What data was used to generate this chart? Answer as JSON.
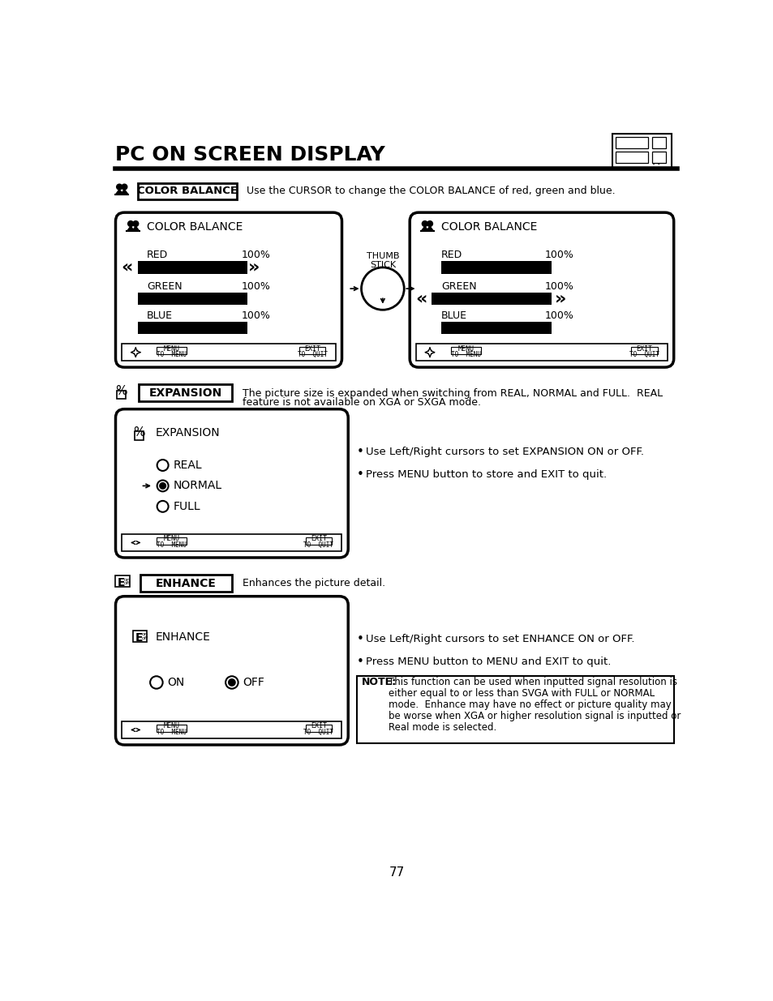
{
  "title": "PC ON SCREEN DISPLAY",
  "page_number": "77",
  "bg": "#ffffff",
  "cb_desc": "Use the CURSOR to change the COLOR BALANCE of red, green and blue.",
  "exp_desc1": "The picture size is expanded when switching from REAL, NORMAL and FULL.  REAL",
  "exp_desc2": "feature is not available on XGA or SXGA mode.",
  "exp_b1": "Use Left/Right cursors to set EXPANSION ON or OFF.",
  "exp_b2": "Press MENU button to store and EXIT to quit.",
  "enh_desc": "Enhances the picture detail.",
  "enh_b1": "Use Left/Right cursors to set ENHANCE ON or OFF.",
  "enh_b2": "Press MENU button to MENU and EXIT to quit.",
  "note_label": "NOTE:",
  "note_line1": "This function can be used when inputted signal resolution is",
  "note_line2": "either equal to or less than SVGA with FULL or NORMAL",
  "note_line3": "mode.  Enhance may have no effect or picture quality may",
  "note_line4": "be worse when XGA or higher resolution signal is inputted or",
  "note_line5": "Real mode is selected."
}
